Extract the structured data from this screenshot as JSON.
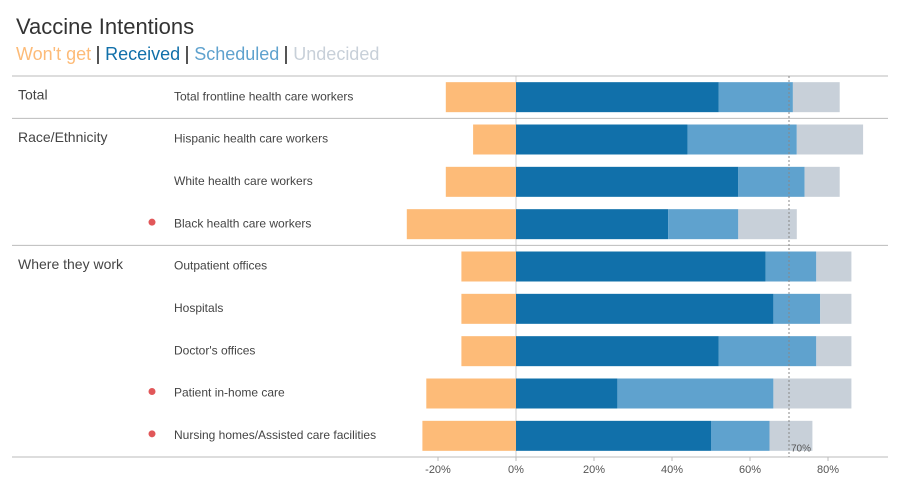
{
  "chart_data": {
    "type": "diverging_bar",
    "title": "Vaccine Intentions",
    "categories": [
      "Total frontline health care workers",
      "Hispanic health care workers",
      "White health care workers",
      "Black health care workers",
      "Outpatient offices",
      "Hospitals",
      "Doctor's offices",
      "Patient in-home care",
      "Nursing homes/Assisted care facilities"
    ],
    "groups": [
      "Total",
      "Race/Ethnicity",
      null,
      null,
      "Where they work",
      null,
      null,
      null,
      null
    ],
    "flagged": [
      false,
      false,
      false,
      true,
      false,
      false,
      false,
      true,
      true
    ],
    "flag_color": "#e15759",
    "series": [
      {
        "name": "Won't get",
        "color": "#fdbb78",
        "values": [
          -18,
          -11,
          -18,
          -28,
          -14,
          -14,
          -14,
          -23,
          -24
        ]
      },
      {
        "name": "Received",
        "color": "#1170aa",
        "values": [
          52,
          44,
          57,
          39,
          64,
          66,
          52,
          26,
          50
        ]
      },
      {
        "name": "Scheduled",
        "color": "#5fa2ce",
        "values": [
          19,
          28,
          17,
          18,
          13,
          12,
          25,
          40,
          15
        ]
      },
      {
        "name": "Undecided",
        "color": "#c8d0d9",
        "values": [
          12,
          17,
          9,
          15,
          9,
          8,
          9,
          20,
          11
        ]
      }
    ],
    "xlim": [
      -30,
      95
    ],
    "xticks": [
      {
        "value": -20,
        "label": "-20%"
      },
      {
        "value": 0,
        "label": "0%"
      },
      {
        "value": 20,
        "label": "20%"
      },
      {
        "value": 40,
        "label": "40%"
      },
      {
        "value": 60,
        "label": "60%"
      },
      {
        "value": 80,
        "label": "80%"
      }
    ],
    "reference_line": {
      "value": 70,
      "label": "70%"
    }
  }
}
